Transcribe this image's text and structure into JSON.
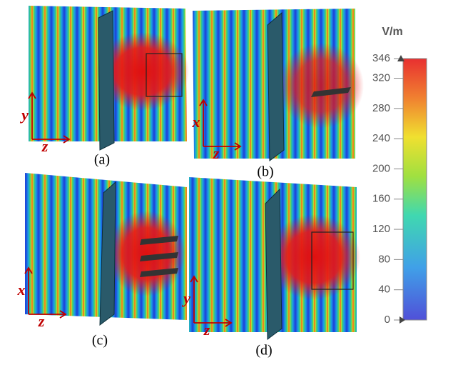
{
  "panels": [
    {
      "label": "(a)",
      "vertical_axis": "y",
      "horizontal_axis": "z"
    },
    {
      "label": "(b)",
      "vertical_axis": "x",
      "horizontal_axis": "z"
    },
    {
      "label": "(c)",
      "vertical_axis": "x",
      "horizontal_axis": "z"
    },
    {
      "label": "(d)",
      "vertical_axis": "y",
      "horizontal_axis": "z"
    }
  ],
  "colorbar": {
    "unit": "V/m",
    "lim": [
      0,
      346
    ],
    "ticks": [
      0,
      40,
      80,
      120,
      160,
      200,
      240,
      280,
      320,
      346
    ]
  }
}
